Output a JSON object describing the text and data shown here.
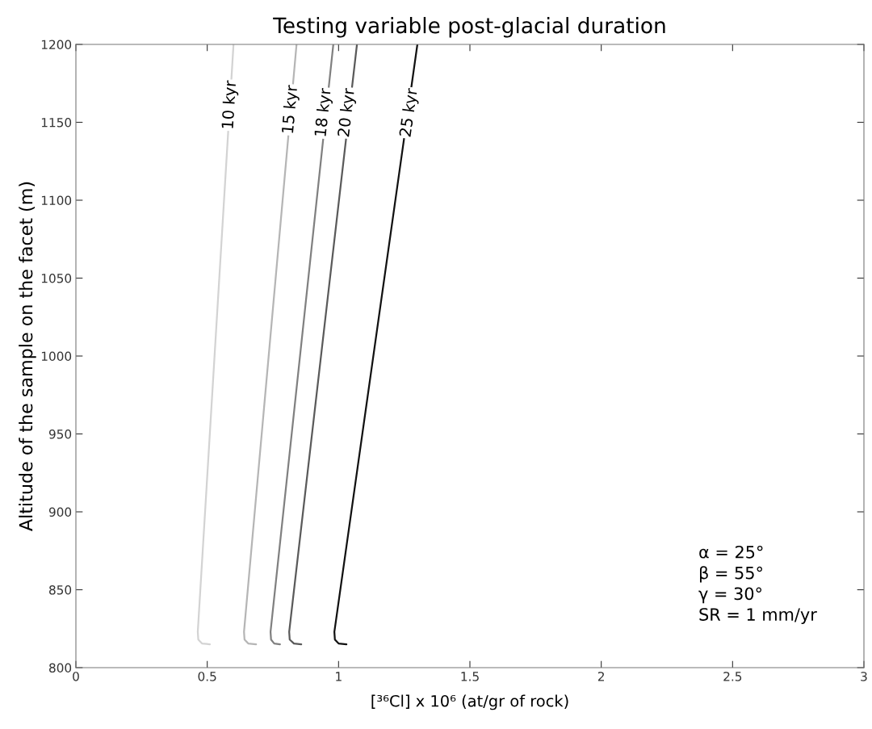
{
  "chart_data": {
    "type": "line",
    "title": "Testing variable post-glacial duration",
    "xlabel": "[³⁶Cl] x 10⁶ (at/gr of rock)",
    "ylabel": "Altitude of the sample on the facet (m)",
    "xlim": [
      0,
      3
    ],
    "ylim": [
      800,
      1200
    ],
    "xticks": [
      0,
      {
        "value": 0.5,
        "label": "0.5"
      },
      1,
      {
        "value": 1.5,
        "label": "1.5"
      },
      2,
      {
        "value": 2.5,
        "label": "2.5"
      },
      3
    ],
    "yticks": [
      800,
      850,
      900,
      950,
      1000,
      1050,
      1100,
      1150,
      1200
    ],
    "grid": false,
    "legend": false,
    "series": [
      {
        "color": "#d3d3d3",
        "x": [
          0.51,
          0.48,
          0.466,
          0.464,
          0.6
        ],
        "values": [
          815,
          815.5,
          818,
          823,
          1200
        ]
      },
      {
        "color": "#b5b5b5",
        "x": [
          0.686,
          0.656,
          0.642,
          0.64,
          0.84
        ],
        "values": [
          815,
          815.5,
          818,
          823,
          1200
        ]
      },
      {
        "color": "#808080",
        "x": [
          0.777,
          0.755,
          0.743,
          0.741,
          0.98
        ],
        "values": [
          815,
          815.5,
          818,
          823,
          1200
        ]
      },
      {
        "color": "#5a5a5a",
        "x": [
          0.858,
          0.83,
          0.814,
          0.812,
          1.07
        ],
        "values": [
          815,
          815.5,
          818,
          823,
          1200
        ]
      },
      {
        "color": "#111111",
        "x": [
          1.03,
          1.0,
          0.986,
          0.984,
          1.3
        ],
        "values": [
          815,
          815.5,
          818,
          823,
          1200
        ]
      }
    ],
    "annotations": [
      {
        "text": "10 kyr",
        "x": 0.587,
        "y": 1161
      },
      {
        "text": "15 kyr",
        "x": 0.818,
        "y": 1158
      },
      {
        "text": "18 kyr",
        "x": 0.944,
        "y": 1156
      },
      {
        "text": "20 kyr",
        "x": 1.033,
        "y": 1156
      },
      {
        "text": "25 kyr",
        "x": 1.27,
        "y": 1156
      },
      "α = 25°\nβ = 55°\nγ = 30°\nSR = 1 mm/yr"
    ]
  }
}
